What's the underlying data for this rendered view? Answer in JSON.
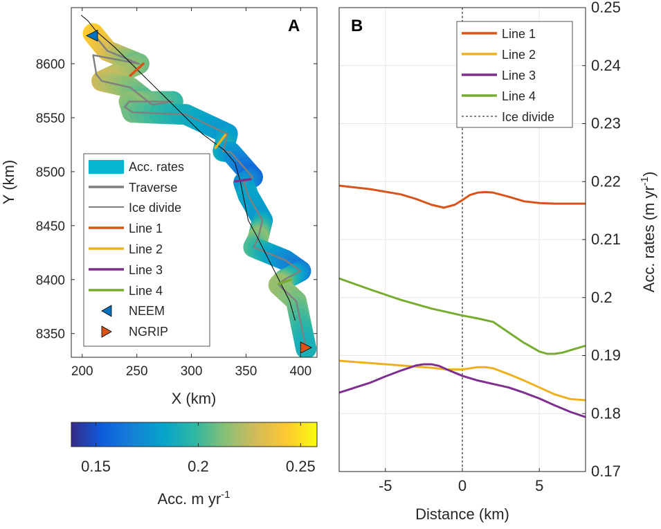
{
  "chart_data": [
    {
      "panel": "A",
      "type": "map",
      "xlabel": "X (km)",
      "ylabel": "Y (km)",
      "xlim": [
        190,
        415
      ],
      "ylim": [
        8328,
        8652
      ],
      "xticks": [
        200,
        250,
        300,
        350,
        400
      ],
      "yticks": [
        8350,
        8400,
        8450,
        8500,
        8550,
        8600
      ],
      "xtick_labels": [
        "200",
        "250",
        "300",
        "350",
        "400"
      ],
      "ytick_labels": [
        "8350",
        "8400",
        "8450",
        "8500",
        "8550",
        "8600"
      ],
      "colors": {
        "traverse": "#7f7f7f",
        "ice_divide": "#000000",
        "line1": "#D95319",
        "line2": "#EDB120",
        "line3": "#7E2F8E",
        "line4": "#77AC30",
        "neem": "#0072BD",
        "ngrip": "#D95319"
      },
      "traverse": {
        "x": [
          210,
          223,
          252,
          210,
          213,
          218,
          244,
          264,
          283,
          243,
          239,
          246,
          295,
          333,
          329,
          336,
          356,
          348,
          352,
          365,
          361,
          357,
          386,
          400,
          385,
          380,
          396,
          405
        ],
        "y": [
          8628,
          8612,
          8600,
          8608,
          8590,
          8584,
          8578,
          8562,
          8565,
          8565,
          8560,
          8555,
          8553,
          8535,
          8519,
          8518,
          8495,
          8490,
          8478,
          8455,
          8438,
          8430,
          8418,
          8408,
          8400,
          8395,
          8380,
          8336
        ]
      },
      "accumulation": [
        {
          "x": 210,
          "y": 8628,
          "v": 0.245
        },
        {
          "x": 223,
          "y": 8612,
          "v": 0.235
        },
        {
          "x": 252,
          "y": 8600,
          "v": 0.208
        },
        {
          "x": 218,
          "y": 8584,
          "v": 0.228
        },
        {
          "x": 244,
          "y": 8578,
          "v": 0.214
        },
        {
          "x": 264,
          "y": 8562,
          "v": 0.202
        },
        {
          "x": 283,
          "y": 8565,
          "v": 0.198
        },
        {
          "x": 243,
          "y": 8565,
          "v": 0.215
        },
        {
          "x": 246,
          "y": 8555,
          "v": 0.21
        },
        {
          "x": 295,
          "y": 8553,
          "v": 0.19
        },
        {
          "x": 333,
          "y": 8535,
          "v": 0.178
        },
        {
          "x": 329,
          "y": 8519,
          "v": 0.19
        },
        {
          "x": 336,
          "y": 8518,
          "v": 0.18
        },
        {
          "x": 356,
          "y": 8495,
          "v": 0.158
        },
        {
          "x": 348,
          "y": 8490,
          "v": 0.172
        },
        {
          "x": 352,
          "y": 8478,
          "v": 0.185
        },
        {
          "x": 365,
          "y": 8455,
          "v": 0.178
        },
        {
          "x": 361,
          "y": 8438,
          "v": 0.215
        },
        {
          "x": 357,
          "y": 8430,
          "v": 0.205
        },
        {
          "x": 386,
          "y": 8418,
          "v": 0.175
        },
        {
          "x": 400,
          "y": 8408,
          "v": 0.165
        },
        {
          "x": 385,
          "y": 8400,
          "v": 0.2
        },
        {
          "x": 380,
          "y": 8395,
          "v": 0.218
        },
        {
          "x": 396,
          "y": 8380,
          "v": 0.212
        },
        {
          "x": 405,
          "y": 8336,
          "v": 0.19
        }
      ],
      "ice_divide": {
        "x": [
          199,
          205,
          213,
          230,
          250,
          270,
          290,
          310,
          330,
          340,
          345,
          348,
          352,
          360,
          370,
          380,
          390,
          395
        ],
        "y": [
          8645,
          8640,
          8630,
          8615,
          8595,
          8575,
          8555,
          8535,
          8520,
          8508,
          8490,
          8475,
          8455,
          8440,
          8420,
          8400,
          8380,
          8362
        ]
      },
      "profile_lines": [
        {
          "name": "Line 1",
          "x": [
            244,
            256
          ],
          "y": [
            8589,
            8600
          ]
        },
        {
          "name": "Line 2",
          "x": [
            322,
            331
          ],
          "y": [
            8522,
            8534
          ]
        },
        {
          "name": "Line 3",
          "x": [
            340,
            354
          ],
          "y": [
            8491,
            8493
          ]
        },
        {
          "name": "Line 4",
          "x": [
            380,
            391
          ],
          "y": [
            8396,
            8400
          ]
        }
      ],
      "markers": [
        {
          "name": "NEEM",
          "x": 209,
          "y": 8626,
          "symbol": "left-triangle"
        },
        {
          "name": "NGRIP",
          "x": 405,
          "y": 8337,
          "symbol": "right-triangle"
        }
      ],
      "legend": {
        "location": "lower-left",
        "entries": [
          "Acc. rates",
          "Traverse",
          "Ice divide",
          "Line 1",
          "Line 2",
          "Line 3",
          "Line 4",
          "NEEM",
          "NGRIP"
        ]
      },
      "colorbar": {
        "label_main": "Acc. m yr",
        "label_sup": "-1",
        "range": [
          0.138,
          0.258
        ],
        "ticks": [
          0.15,
          0.2,
          0.25
        ],
        "tick_labels": [
          "0.15",
          "0.2",
          "0.25"
        ],
        "colormap": "parula"
      }
    },
    {
      "panel": "B",
      "type": "line",
      "xlabel": "Distance (km)",
      "ylabel_main": "Acc. rates (m yr",
      "ylabel_sup": "-1",
      "ylabel_end": ")",
      "xlim": [
        -8,
        8
      ],
      "ylim": [
        0.17,
        0.25
      ],
      "xticks": [
        -5,
        0,
        5
      ],
      "xtick_labels": [
        "-5",
        "0",
        "5"
      ],
      "yticks": [
        0.17,
        0.18,
        0.19,
        0.2,
        0.21,
        0.22,
        0.23,
        0.24,
        0.25
      ],
      "ytick_labels": [
        "0.17",
        "0.18",
        "0.19",
        "0.2",
        "0.21",
        "0.22",
        "0.23",
        "0.24",
        "0.25"
      ],
      "grid": true,
      "ice_divide_x": 0,
      "legend": {
        "location": "top-right",
        "divider_label": "Ice divide"
      },
      "series": [
        {
          "name": "Line 1",
          "color": "#D95319",
          "x": [
            -8,
            -6,
            -4,
            -3,
            -2,
            -1.2,
            -0.5,
            0,
            0.5,
            1,
            1.5,
            2,
            3,
            4,
            5,
            6,
            7,
            8
          ],
          "y": [
            0.2193,
            0.2187,
            0.2178,
            0.217,
            0.216,
            0.2155,
            0.216,
            0.2168,
            0.2177,
            0.2181,
            0.2182,
            0.2181,
            0.2174,
            0.2166,
            0.2163,
            0.2162,
            0.2162,
            0.2162
          ]
        },
        {
          "name": "Line 2",
          "color": "#EDB120",
          "x": [
            -8,
            -6,
            -4,
            -2,
            -1,
            0,
            0.5,
            1,
            1.5,
            2,
            3,
            4,
            5,
            6,
            7,
            8
          ],
          "y": [
            0.1891,
            0.1887,
            0.1883,
            0.1879,
            0.1876,
            0.1876,
            0.1878,
            0.188,
            0.188,
            0.1878,
            0.1868,
            0.1857,
            0.1845,
            0.1833,
            0.1825,
            0.1823
          ]
        },
        {
          "name": "Line 3",
          "color": "#7E2F8E",
          "x": [
            -8,
            -6,
            -5,
            -4,
            -3,
            -2.5,
            -2,
            -1.5,
            -1,
            0,
            1,
            2,
            3,
            4,
            5,
            6,
            7,
            8
          ],
          "y": [
            0.1836,
            0.1853,
            0.1864,
            0.1874,
            0.1883,
            0.1885,
            0.1885,
            0.1882,
            0.1876,
            0.1865,
            0.1857,
            0.1851,
            0.1845,
            0.1836,
            0.1826,
            0.1814,
            0.1803,
            0.1794
          ]
        },
        {
          "name": "Line 4",
          "color": "#77AC30",
          "x": [
            -8,
            -6,
            -4,
            -2,
            0,
            1,
            2,
            3,
            4,
            5,
            5.5,
            6,
            6.5,
            7,
            8
          ],
          "y": [
            0.2033,
            0.2014,
            0.1996,
            0.1981,
            0.1969,
            0.1964,
            0.1958,
            0.194,
            0.1922,
            0.1907,
            0.1903,
            0.1903,
            0.1905,
            0.1909,
            0.1917
          ]
        }
      ]
    }
  ]
}
